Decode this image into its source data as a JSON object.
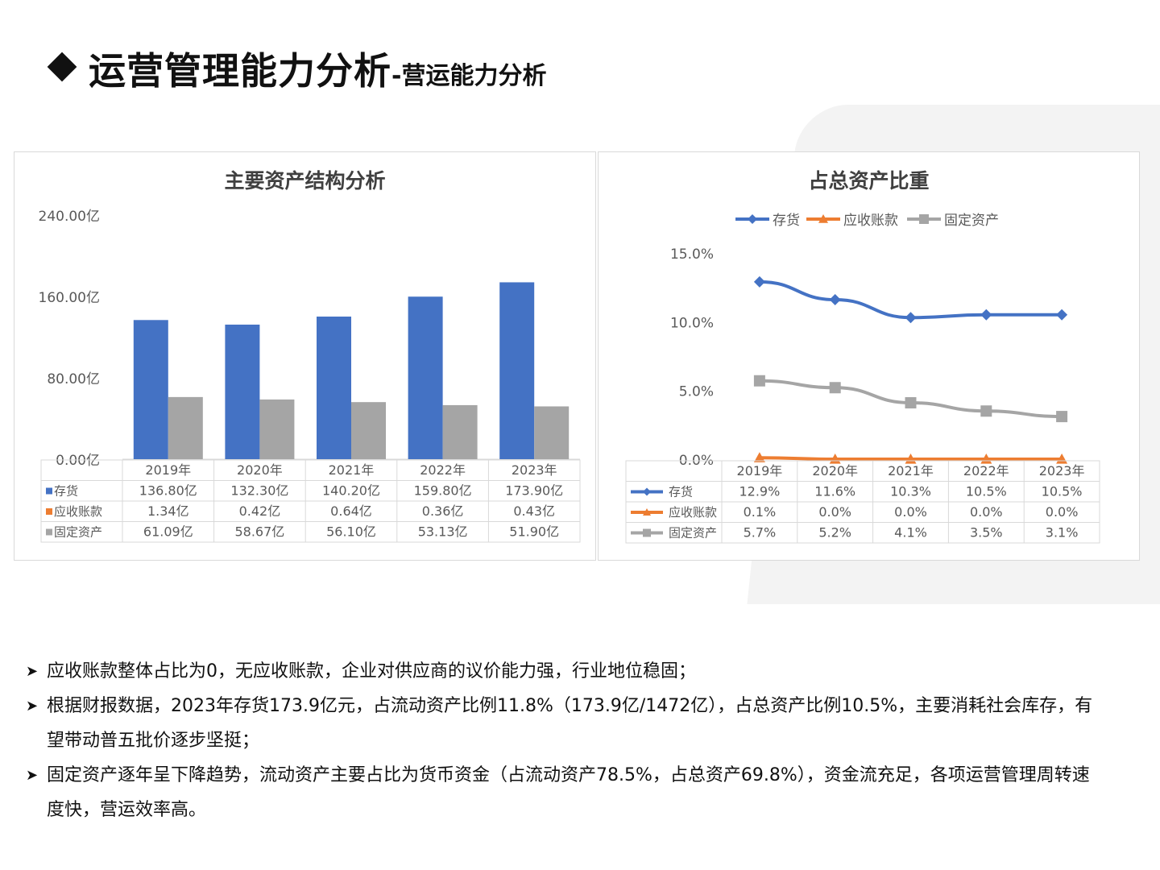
{
  "header": {
    "title_main": "运营管理能力分析",
    "title_sub": "-营运能力分析"
  },
  "left_panel": {
    "title": "主要资产结构分析"
  },
  "right_panel": {
    "title": "占总资产比重"
  },
  "chart_data": [
    {
      "type": "bar",
      "title": "主要资产结构分析",
      "categories": [
        "2019年",
        "2020年",
        "2021年",
        "2022年",
        "2023年"
      ],
      "ylim": [
        0,
        240
      ],
      "y_ticks": [
        "0.00亿",
        "80.00亿",
        "160.00亿",
        "240.00亿"
      ],
      "y_tick_values": [
        0,
        80,
        160,
        240
      ],
      "grid": false,
      "series": [
        {
          "name": "存货",
          "color": "#4472C4",
          "values": [
            136.8,
            132.3,
            140.2,
            159.8,
            173.9
          ],
          "labels": [
            "136.80亿",
            "132.30亿",
            "140.20亿",
            "159.80亿",
            "173.90亿"
          ],
          "plotted": true
        },
        {
          "name": "应收账款",
          "color": "#ED7D31",
          "values": [
            1.34,
            0.42,
            0.64,
            0.36,
            0.43
          ],
          "labels": [
            "1.34亿",
            "0.42亿",
            "0.64亿",
            "0.36亿",
            "0.43亿"
          ],
          "plotted": false
        },
        {
          "name": "固定资产",
          "color": "#A5A5A5",
          "values": [
            61.09,
            58.67,
            56.1,
            53.13,
            51.9
          ],
          "labels": [
            "61.09亿",
            "58.67亿",
            "56.10亿",
            "53.13亿",
            "51.90亿"
          ],
          "plotted": true
        }
      ]
    },
    {
      "type": "line",
      "title": "占总资产比重",
      "categories": [
        "2019年",
        "2020年",
        "2021年",
        "2022年",
        "2023年"
      ],
      "ylim": [
        0,
        15
      ],
      "y_ticks": [
        "0.0%",
        "5.0%",
        "10.0%",
        "15.0%"
      ],
      "y_tick_values": [
        0,
        5,
        10,
        15
      ],
      "legend_position": "top",
      "grid": false,
      "series": [
        {
          "name": "存货",
          "color": "#4472C4",
          "marker": "diamond",
          "values": [
            12.9,
            11.6,
            10.3,
            10.5,
            10.5
          ],
          "labels": [
            "12.9%",
            "11.6%",
            "10.3%",
            "10.5%",
            "10.5%"
          ]
        },
        {
          "name": "应收账款",
          "color": "#ED7D31",
          "marker": "triangle",
          "values": [
            0.1,
            0.0,
            0.0,
            0.0,
            0.0
          ],
          "labels": [
            "0.1%",
            "0.0%",
            "0.0%",
            "0.0%",
            "0.0%"
          ]
        },
        {
          "name": "固定资产",
          "color": "#A5A5A5",
          "marker": "square",
          "values": [
            5.7,
            5.2,
            4.1,
            3.5,
            3.1
          ],
          "labels": [
            "5.7%",
            "5.2%",
            "4.1%",
            "3.5%",
            "3.1%"
          ]
        }
      ]
    }
  ],
  "bullets": [
    "应收账款整体占比为0，无应收账款，企业对供应商的议价能力强，行业地位稳固；",
    "根据财报数据，2023年存货173.9亿元，占流动资产比例11.8%（173.9亿/1472亿），占总资产比例10.5%，主要消耗社会库存，有望带动普五批价逐步坚挺；",
    "固定资产逐年呈下降趋势，流动资产主要占比为货币资金（占流动资产78.5%，占总资产69.8%），资金流充足，各项运营管理周转速度快，营运效率高。"
  ]
}
